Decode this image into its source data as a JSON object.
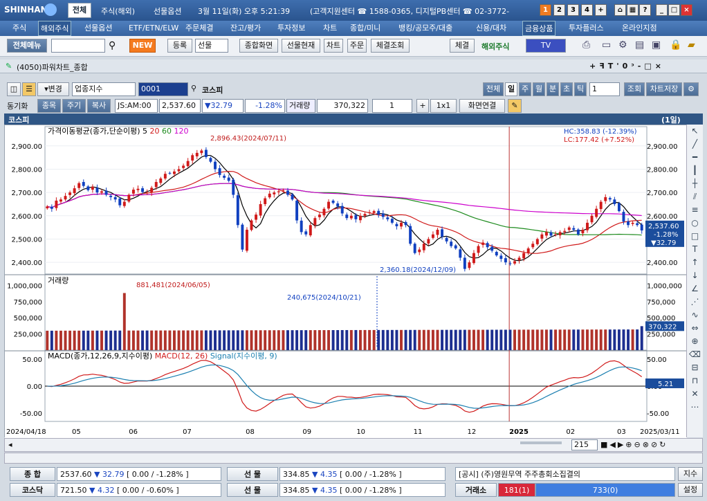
{
  "titlebar": {
    "logo": "SHINHAN",
    "tab_all": "전체",
    "items": [
      "주식(해외)",
      "선물옵션"
    ],
    "datetime": "3월 11일(화) 오후 5:21:39",
    "support": "(고객지원센터 ☎ 1588-0365, 디지털PB센터 ☎ 02-3772-",
    "numbuttons": [
      "1",
      "2",
      "3",
      "4",
      "+"
    ]
  },
  "menu": [
    "주식",
    "해외주식",
    "선물옵션",
    "ETF/ETN/ELW",
    "주문체결",
    "잔고/평가",
    "투자정보",
    "차트",
    "종합/미니",
    "뱅킹/공모주/대출",
    "신용/대차",
    "금융상품",
    "투자플러스",
    "온라인지점"
  ],
  "toolbar": {
    "full_menu": "전체메뉴",
    "new_badge": "NEW",
    "register": "등록",
    "select": "선물",
    "buttons": [
      "종합화면",
      "선물현재",
      "차트",
      "주문",
      "체결조회"
    ],
    "settle": "체결",
    "overseas": "해외주식",
    "tv": "TV"
  },
  "window": {
    "title": "(4050)파워차트_종합",
    "controls": [
      "+",
      "꿈",
      "T",
      "'",
      "0",
      "ㅊ",
      "-",
      "□",
      "X"
    ]
  },
  "controls": {
    "change": "변경",
    "sector": "업종지수",
    "code": "0001",
    "name": "코스피",
    "periods": [
      "전체",
      "일",
      "주",
      "월",
      "분",
      "초",
      "틱"
    ],
    "count": "1",
    "query": "조회",
    "save": "차트저장",
    "sync": "동기화",
    "sync_tabs": [
      "종목",
      "주기",
      "복사"
    ],
    "quote": {
      "label": "JS:AM:00",
      "price": "2,537.60",
      "change": "▼32.79",
      "rate": "-1.28%"
    },
    "volume_label": "거래량",
    "volume": "370,322",
    "layout": "1x1",
    "link": "화면연결"
  },
  "chart_header": {
    "name": "코스피",
    "period": "(1일)"
  },
  "chart_data": [
    {
      "type": "candlestick",
      "title": "가격이동평균(종가,단순이평)",
      "ma_periods": [
        "5",
        "20",
        "60",
        "120"
      ],
      "ma_colors": [
        "#000000",
        "#d01a1a",
        "#1c8a1c",
        "#cc00cc"
      ],
      "hc": "HC:358.83 (-12.39%)",
      "lc": "LC:177.42 (+7.52%)",
      "high_annot": "2,896.43(2024/07/11)",
      "low_annot": "2,360.18(2024/12/09)",
      "y_ticks": [
        "2,900.00",
        "2,800.00",
        "2,700.00",
        "2,600.00",
        "2,500.00",
        "2,400.00"
      ],
      "ylim": [
        2350,
        2935
      ],
      "last": {
        "price": "2,537.60",
        "rate": "-1.28%",
        "change": "▼32.79"
      },
      "closes": [
        2640,
        2630,
        2665,
        2670,
        2685,
        2700,
        2718,
        2740,
        2728,
        2710,
        2725,
        2700,
        2705,
        2690,
        2680,
        2670,
        2645,
        2660,
        2690,
        2712,
        2716,
        2702,
        2700,
        2720,
        2745,
        2760,
        2780,
        2782,
        2790,
        2800,
        2815,
        2835,
        2860,
        2870,
        2880,
        2852,
        2832,
        2800,
        2775,
        2763,
        2750,
        2690,
        2560,
        2455,
        2540,
        2580,
        2605,
        2650,
        2675,
        2695,
        2700,
        2705,
        2710,
        2690,
        2670,
        2580,
        2530,
        2520,
        2560,
        2590,
        2605,
        2630,
        2660,
        2655,
        2640,
        2610,
        2590,
        2600,
        2585,
        2600,
        2608,
        2615,
        2620,
        2605,
        2595,
        2585,
        2570,
        2555,
        2570,
        2560,
        2480,
        2440,
        2455,
        2480,
        2500,
        2520,
        2540,
        2510,
        2490,
        2470,
        2460,
        2420,
        2372,
        2400,
        2440,
        2470,
        2485,
        2465,
        2450,
        2430,
        2415,
        2400,
        2395,
        2405,
        2420,
        2440,
        2460,
        2480,
        2500,
        2520,
        2530,
        2515,
        2520,
        2530,
        2535,
        2550,
        2540,
        2520,
        2540,
        2570,
        2600,
        2630,
        2660,
        2680,
        2670,
        2650,
        2620,
        2575,
        2560,
        2570,
        2560,
        2537
      ]
    },
    {
      "type": "bar",
      "title": "거래량",
      "high_annot": "881,481(2024/06/05)",
      "mark_annot": "240,675(2024/10/21)",
      "y_ticks": [
        "1,000,000",
        "750,000",
        "500,000",
        "250,000"
      ],
      "ylim": [
        0,
        1100000
      ],
      "last": "370,322"
    },
    {
      "type": "line",
      "title": "MACD(종가,12,26,9,지수이평)",
      "series_labels": [
        "MACD(12, 26)",
        "Signal(지수이평, 9)"
      ],
      "y_ticks": [
        "50.00",
        "0.00",
        "-50.00"
      ],
      "ylim": [
        -65,
        60
      ],
      "last": "5.21"
    }
  ],
  "x_axis": [
    "2024/04/18",
    "05",
    "06",
    "07",
    "08",
    "09",
    "10",
    "11",
    "12",
    "2025",
    "02",
    "03",
    "2025/03/11"
  ],
  "scroll": {
    "count": "215"
  },
  "bottom": {
    "row1": {
      "name": "종 합",
      "price": "2537.60",
      "change": "▼ 32.79",
      "range": "[ 0.00 / -1.28% ]",
      "futures": "선 물",
      "fprice": "334.85",
      "fchange": "▼ 4.35",
      "frange": "[ 0.00 / -1.28% ]",
      "notice": "[공시] (주)영원무역 주주총회소집결의",
      "btn": "지수"
    },
    "row2": {
      "name": "코스닥",
      "price": "721.50",
      "change": "▼ 4.32",
      "range": "[ 0.00 / -0.60% ]",
      "futures": "선 물",
      "fprice": "334.85",
      "fchange": "▼ 4.35",
      "frange": "[ 0.00 / -1.28% ]",
      "exchange": "거래소",
      "down": "181(1)",
      "up": "733(0)",
      "btn": "설정"
    }
  }
}
